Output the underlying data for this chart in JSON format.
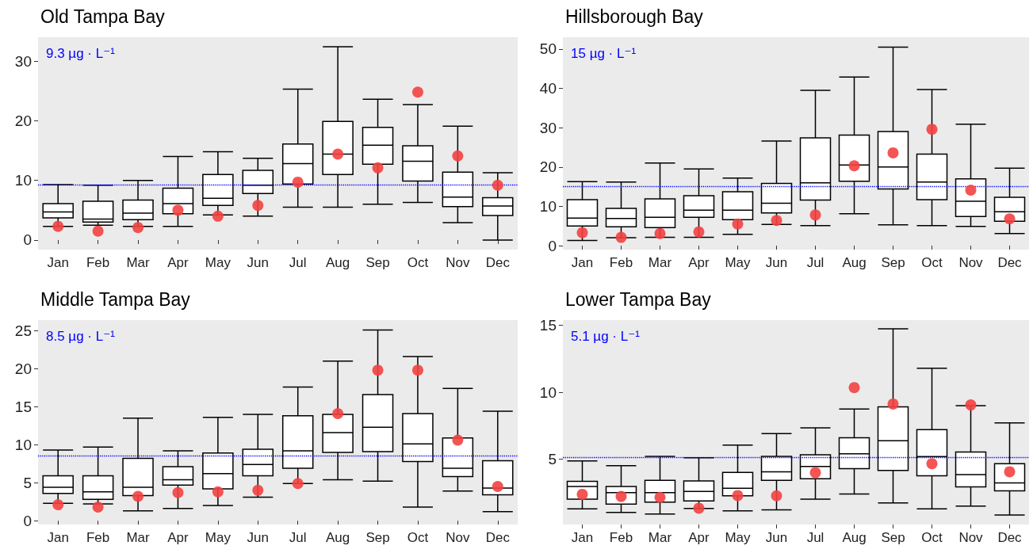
{
  "chart_data": [
    {
      "type": "box",
      "title": "Old Tampa Bay",
      "categories": [
        "Jan",
        "Feb",
        "Mar",
        "Apr",
        "May",
        "Jun",
        "Jul",
        "Aug",
        "Sep",
        "Oct",
        "Nov",
        "Dec"
      ],
      "ylim": [
        -1.6,
        34
      ],
      "yticks": [
        0,
        10,
        20,
        30
      ],
      "grid": false,
      "marker": "circle",
      "ref_lines": [
        {
          "axis": "y",
          "value": 9.3,
          "label": "9.3 µg · L⁻¹",
          "color": "#0000ff",
          "line_style": "dotted"
        }
      ],
      "series": [
        {
          "color": "#000000",
          "boxes": [
            {
              "low": 2.3,
              "q1": 3.7,
              "median": 4.7,
              "q3": 6.1,
              "high": 9.3
            },
            {
              "low": 2.5,
              "q1": 3.0,
              "median": 3.5,
              "q3": 6.5,
              "high": 9.2
            },
            {
              "low": 2.3,
              "q1": 3.4,
              "median": 4.5,
              "q3": 6.7,
              "high": 10.0
            },
            {
              "low": 2.3,
              "q1": 4.4,
              "median": 6.1,
              "q3": 8.7,
              "high": 14.0
            },
            {
              "low": 4.2,
              "q1": 5.8,
              "median": 7.0,
              "q3": 11.0,
              "high": 14.8
            },
            {
              "low": 4.0,
              "q1": 7.8,
              "median": 9.2,
              "q3": 11.7,
              "high": 13.7
            },
            {
              "low": 5.5,
              "q1": 9.4,
              "median": 12.8,
              "q3": 16.1,
              "high": 25.3
            },
            {
              "low": 5.5,
              "q1": 11.0,
              "median": 14.4,
              "q3": 19.9,
              "high": 32.4
            },
            {
              "low": 6.0,
              "q1": 12.7,
              "median": 15.9,
              "q3": 18.9,
              "high": 23.6
            },
            {
              "low": 6.3,
              "q1": 9.9,
              "median": 13.2,
              "q3": 15.8,
              "high": 22.7
            },
            {
              "low": 2.9,
              "q1": 5.6,
              "median": 7.2,
              "q3": 11.4,
              "high": 19.1
            },
            {
              "low": 0.0,
              "q1": 4.1,
              "median": 5.7,
              "q3": 7.1,
              "high": 11.3
            }
          ]
        },
        {
          "type": "scatter",
          "color": "#f44141",
          "x": [
            "Jan",
            "Feb",
            "Mar",
            "Apr",
            "May",
            "Jun",
            "Jul",
            "Aug",
            "Sep",
            "Oct",
            "Nov",
            "Dec"
          ],
          "values": [
            2.3,
            1.5,
            2.1,
            5.0,
            4.0,
            5.8,
            9.7,
            14.4,
            12.1,
            24.8,
            14.1,
            9.2
          ]
        }
      ]
    },
    {
      "type": "box",
      "title": "Hillsborough Bay",
      "categories": [
        "Jan",
        "Feb",
        "Mar",
        "Apr",
        "May",
        "Jun",
        "Jul",
        "Aug",
        "Sep",
        "Oct",
        "Nov",
        "Dec"
      ],
      "ylim": [
        -1,
        53
      ],
      "yticks": [
        0,
        10,
        20,
        30,
        40,
        50
      ],
      "grid": false,
      "marker": "circle",
      "ref_lines": [
        {
          "axis": "y",
          "value": 15,
          "label": "15 µg · L⁻¹",
          "color": "#0000ff",
          "line_style": "dotted"
        }
      ],
      "series": [
        {
          "color": "#000000",
          "boxes": [
            {
              "low": 1.3,
              "q1": 5.0,
              "median": 7.0,
              "q3": 11.7,
              "high": 16.3
            },
            {
              "low": 2.0,
              "q1": 4.8,
              "median": 6.9,
              "q3": 9.5,
              "high": 16.2
            },
            {
              "low": 2.1,
              "q1": 4.6,
              "median": 7.2,
              "q3": 11.9,
              "high": 21.0
            },
            {
              "low": 2.1,
              "q1": 7.2,
              "median": 9.0,
              "q3": 12.7,
              "high": 19.5
            },
            {
              "low": 2.9,
              "q1": 6.6,
              "median": 9.0,
              "q3": 13.7,
              "high": 17.2
            },
            {
              "low": 5.4,
              "q1": 8.3,
              "median": 10.8,
              "q3": 15.8,
              "high": 26.6
            },
            {
              "low": 5.1,
              "q1": 11.6,
              "median": 16.0,
              "q3": 27.4,
              "high": 39.5
            },
            {
              "low": 8.1,
              "q1": 16.4,
              "median": 20.5,
              "q3": 28.1,
              "high": 42.9
            },
            {
              "low": 5.3,
              "q1": 14.4,
              "median": 20.0,
              "q3": 29.0,
              "high": 50.5
            },
            {
              "low": 5.1,
              "q1": 11.7,
              "median": 16.2,
              "q3": 23.3,
              "high": 39.7
            },
            {
              "low": 4.9,
              "q1": 7.4,
              "median": 11.3,
              "q3": 17.0,
              "high": 30.9
            },
            {
              "low": 3.1,
              "q1": 6.2,
              "median": 8.6,
              "q3": 12.3,
              "high": 19.7
            }
          ]
        },
        {
          "type": "scatter",
          "color": "#f44141",
          "x": [
            "Jan",
            "Feb",
            "Mar",
            "Apr",
            "May",
            "Jun",
            "Jul",
            "Aug",
            "Sep",
            "Oct",
            "Nov",
            "Dec"
          ],
          "values": [
            3.3,
            2.1,
            3.1,
            3.5,
            5.5,
            6.4,
            7.8,
            20.3,
            23.6,
            29.6,
            14.1,
            6.8
          ]
        }
      ]
    },
    {
      "type": "box",
      "title": "Middle Tampa Bay",
      "categories": [
        "Jan",
        "Feb",
        "Mar",
        "Apr",
        "May",
        "Jun",
        "Jul",
        "Aug",
        "Sep",
        "Oct",
        "Nov",
        "Dec"
      ],
      "ylim": [
        -0.5,
        26.4
      ],
      "yticks": [
        0,
        5,
        10,
        15,
        20,
        25
      ],
      "grid": false,
      "marker": "circle",
      "ref_lines": [
        {
          "axis": "y",
          "value": 8.5,
          "label": "8.5 µg · L⁻¹",
          "color": "#0000ff",
          "line_style": "dotted"
        }
      ],
      "series": [
        {
          "color": "#000000",
          "boxes": [
            {
              "low": 2.3,
              "q1": 3.6,
              "median": 4.4,
              "q3": 5.9,
              "high": 9.3
            },
            {
              "low": 2.2,
              "q1": 2.8,
              "median": 3.8,
              "q3": 5.9,
              "high": 9.7
            },
            {
              "low": 1.3,
              "q1": 3.3,
              "median": 4.4,
              "q3": 8.2,
              "high": 13.5
            },
            {
              "low": 1.6,
              "q1": 4.7,
              "median": 5.4,
              "q3": 7.1,
              "high": 9.2
            },
            {
              "low": 2.0,
              "q1": 4.2,
              "median": 6.2,
              "q3": 8.9,
              "high": 13.6
            },
            {
              "low": 3.1,
              "q1": 5.9,
              "median": 7.4,
              "q3": 9.4,
              "high": 14.0
            },
            {
              "low": 4.9,
              "q1": 6.9,
              "median": 9.2,
              "q3": 13.8,
              "high": 17.6
            },
            {
              "low": 5.4,
              "q1": 9.0,
              "median": 11.6,
              "q3": 14.0,
              "high": 21.0
            },
            {
              "low": 5.2,
              "q1": 9.1,
              "median": 12.3,
              "q3": 16.6,
              "high": 25.1
            },
            {
              "low": 1.8,
              "q1": 7.8,
              "median": 10.1,
              "q3": 14.1,
              "high": 21.6
            },
            {
              "low": 3.9,
              "q1": 5.8,
              "median": 6.9,
              "q3": 10.9,
              "high": 17.4
            },
            {
              "low": 1.2,
              "q1": 3.4,
              "median": 4.3,
              "q3": 7.9,
              "high": 14.4
            }
          ]
        },
        {
          "type": "scatter",
          "color": "#f44141",
          "x": [
            "Jan",
            "Feb",
            "Mar",
            "Apr",
            "May",
            "Jun",
            "Jul",
            "Aug",
            "Sep",
            "Oct",
            "Nov",
            "Dec"
          ],
          "values": [
            2.1,
            1.8,
            3.2,
            3.7,
            3.8,
            4.0,
            4.9,
            14.1,
            19.8,
            19.8,
            10.6,
            4.5
          ]
        }
      ]
    },
    {
      "type": "box",
      "title": "Lower Tampa Bay",
      "categories": [
        "Jan",
        "Feb",
        "Mar",
        "Apr",
        "May",
        "Jun",
        "Jul",
        "Aug",
        "Sep",
        "Oct",
        "Nov",
        "Dec"
      ],
      "ylim": [
        0.1,
        15.4
      ],
      "yticks": [
        5,
        10,
        15
      ],
      "grid": false,
      "marker": "circle",
      "ref_lines": [
        {
          "axis": "y",
          "value": 5.1,
          "label": "5.1 µg · L⁻¹",
          "color": "#0000ff",
          "line_style": "dotted"
        }
      ],
      "series": [
        {
          "color": "#000000",
          "boxes": [
            {
              "low": 1.27,
              "q1": 2.0,
              "median": 2.94,
              "q3": 3.33,
              "high": 4.86
            },
            {
              "low": 1.0,
              "q1": 1.62,
              "median": 2.48,
              "q3": 2.94,
              "high": 4.5
            },
            {
              "low": 0.88,
              "q1": 1.78,
              "median": 2.48,
              "q3": 3.4,
              "high": 5.2
            },
            {
              "low": 1.3,
              "q1": 1.87,
              "median": 2.57,
              "q3": 3.36,
              "high": 5.1
            },
            {
              "low": 1.13,
              "q1": 2.25,
              "median": 2.82,
              "q3": 4.0,
              "high": 6.04
            },
            {
              "low": 1.2,
              "q1": 3.4,
              "median": 4.05,
              "q3": 5.2,
              "high": 6.9
            },
            {
              "low": 2.0,
              "q1": 3.52,
              "median": 4.44,
              "q3": 5.32,
              "high": 7.34
            },
            {
              "low": 2.38,
              "q1": 4.28,
              "median": 5.4,
              "q3": 6.6,
              "high": 8.75
            },
            {
              "low": 1.71,
              "q1": 4.14,
              "median": 6.37,
              "q3": 8.9,
              "high": 14.75
            },
            {
              "low": 1.27,
              "q1": 3.75,
              "median": 5.19,
              "q3": 7.2,
              "high": 11.8
            },
            {
              "low": 1.48,
              "q1": 2.92,
              "median": 3.84,
              "q3": 5.53,
              "high": 9.0
            },
            {
              "low": 0.81,
              "q1": 2.62,
              "median": 3.22,
              "q3": 4.65,
              "high": 7.7
            }
          ]
        },
        {
          "type": "scatter",
          "color": "#f44141",
          "x": [
            "Jan",
            "Feb",
            "Mar",
            "Apr",
            "May",
            "Jun",
            "Jul",
            "Aug",
            "Sep",
            "Oct",
            "Nov",
            "Dec"
          ],
          "values": [
            2.36,
            2.2,
            2.13,
            1.32,
            2.27,
            2.25,
            3.98,
            10.35,
            9.12,
            4.65,
            9.05,
            4.05
          ]
        }
      ]
    }
  ]
}
